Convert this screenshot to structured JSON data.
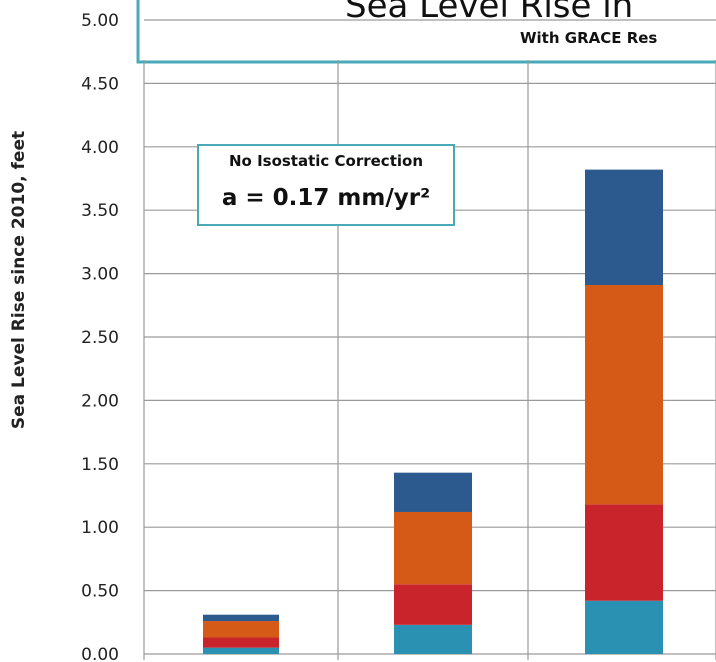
{
  "chart_data": {
    "type": "bar",
    "stacked": true,
    "title": "Sea Level Rise in",
    "subtitle": "With GRACE Res",
    "ylabel": "Sea Level Rise since 2010, feet",
    "ylim": [
      0,
      5.0
    ],
    "yticks": [
      "0.00",
      "0.50",
      "1.00",
      "1.50",
      "2.00",
      "2.50",
      "3.00",
      "3.50",
      "4.00",
      "4.50",
      "5.00"
    ],
    "grid": true,
    "categories": [
      "",
      "",
      ""
    ],
    "series": [
      {
        "color": "#2a91b3",
        "values": [
          0.05,
          0.23,
          0.42
        ]
      },
      {
        "color": "#c9232c",
        "values": [
          0.08,
          0.32,
          0.76
        ]
      },
      {
        "color": "#d55a18",
        "values": [
          0.13,
          0.57,
          1.73
        ]
      },
      {
        "color": "#2d5a8e",
        "values": [
          0.05,
          0.31,
          0.91
        ]
      }
    ],
    "annotation": {
      "line1": "No Isostatic Correction",
      "line2": "a = 0.17 mm/yr²"
    }
  }
}
